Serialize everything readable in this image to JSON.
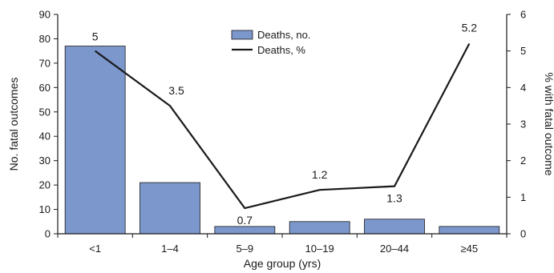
{
  "chart_data": {
    "type": "bar",
    "categories": [
      "<1",
      "1–4",
      "5–9",
      "10–19",
      "20–44",
      "≥45"
    ],
    "series": [
      {
        "name": "Deaths, no.",
        "type": "bar",
        "axis": "left",
        "values": [
          77,
          21,
          3,
          5,
          6,
          3
        ],
        "color": "#7b97cb"
      },
      {
        "name": "Deaths, %",
        "type": "line",
        "axis": "right",
        "values": [
          5,
          3.5,
          0.7,
          1.2,
          1.3,
          5.2
        ],
        "labels": [
          "5",
          "3.5",
          "0.7",
          "1.2",
          "1.3",
          "5.2"
        ],
        "color": "#1a1a1a"
      }
    ],
    "xlabel": "Age group (yrs)",
    "ylabel": "No. fatal outcomes",
    "y2label": "% with fatal outcome",
    "ylim": [
      0,
      90
    ],
    "y2lim": [
      0,
      6
    ],
    "yticks": [
      0,
      10,
      20,
      30,
      40,
      50,
      60,
      70,
      80,
      90
    ],
    "y2ticks": [
      0,
      1,
      2,
      3,
      4,
      5,
      6
    ],
    "grid": false,
    "legend": "top-center"
  }
}
